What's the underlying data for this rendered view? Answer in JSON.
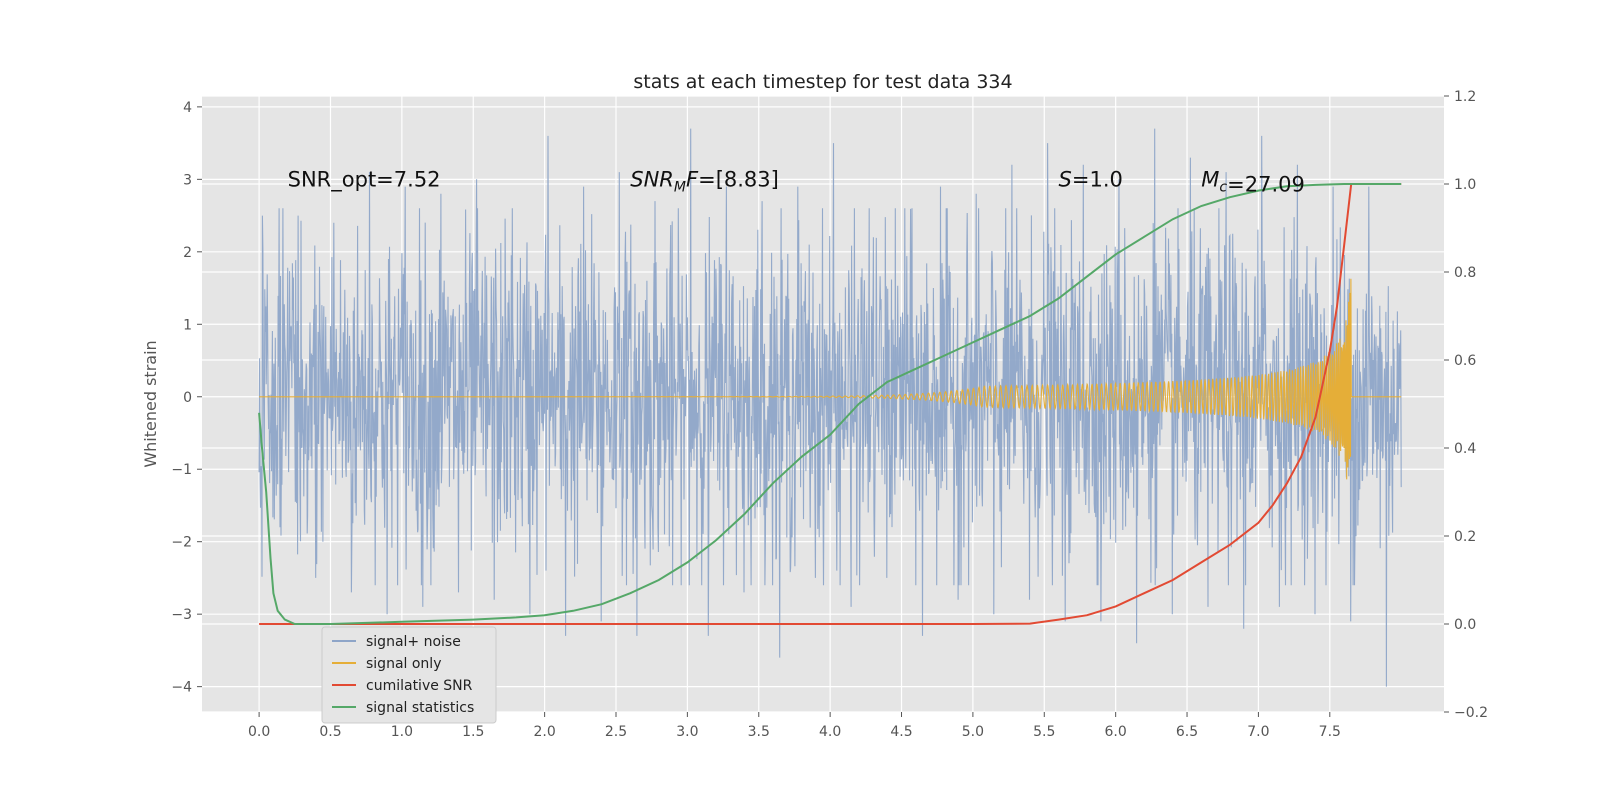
{
  "chart_data": {
    "type": "line",
    "title": "stats at each timestep for test data 334",
    "ylabel": "Whitened strain",
    "y2label": "",
    "xlim": [
      -0.4,
      8.3
    ],
    "ylim": [
      -4.35,
      4.15
    ],
    "y2lim": [
      -0.2,
      1.2
    ],
    "x_ticks": [
      0.0,
      0.5,
      1.0,
      1.5,
      2.0,
      2.5,
      3.0,
      3.5,
      4.0,
      4.5,
      5.0,
      5.5,
      6.0,
      6.5,
      7.0,
      7.5
    ],
    "x_tick_labels": [
      "0.0",
      "0.5",
      "1.0",
      "1.5",
      "2.0",
      "2.5",
      "3.0",
      "3.5",
      "4.0",
      "4.5",
      "5.0",
      "5.5",
      "6.0",
      "6.5",
      "7.0",
      "7.5"
    ],
    "y_ticks": [
      -4,
      -3,
      -2,
      -1,
      0,
      1,
      2,
      3,
      4
    ],
    "y_tick_labels": [
      "−4",
      "−3",
      "−2",
      "−1",
      "0",
      "1",
      "2",
      "3",
      "4"
    ],
    "y2_ticks": [
      -0.2,
      0.0,
      0.2,
      0.4,
      0.6,
      0.8,
      1.0,
      1.2
    ],
    "y2_tick_labels": [
      "−0.2",
      "0.0",
      "0.2",
      "0.4",
      "0.6",
      "0.8",
      "1.0",
      "1.2"
    ],
    "grid": true,
    "legend_position": "bottom-left",
    "annotations": [
      {
        "prefix": "SNR_opt=",
        "sub": "",
        "value": "7.52",
        "x": 0.2,
        "y": 3.0,
        "italic": false
      },
      {
        "prefix": "SNR",
        "sub": "M",
        "suffix": "F",
        "value": "=[8.83]",
        "x": 2.6,
        "y": 3.0,
        "italic": true
      },
      {
        "prefix": "S",
        "sub": "",
        "value": "=1.0",
        "x": 5.6,
        "y": 3.0,
        "italic": true
      },
      {
        "prefix": "M",
        "sub": "c",
        "value": "=27.09",
        "x": 6.6,
        "y": 3.0,
        "italic": true
      }
    ],
    "series": [
      {
        "name": "signal+ noise",
        "axis": "left",
        "color": "#8EA5C8",
        "kind": "noise",
        "x_range": [
          0.0,
          8.0
        ],
        "amplitude_typical": 1.3,
        "peaks_max": [
          2.5,
          2.5,
          2.4,
          3.1,
          2.9,
          2.8,
          3.0,
          2.6,
          3.6,
          2.9,
          3.1,
          2.7,
          3.7,
          2.9,
          2.7,
          2.9,
          3.5,
          2.6,
          2.6,
          2.9,
          2.8,
          3.2,
          3.5,
          3.2,
          3.0,
          3.7,
          3.3,
          3.1,
          3.6,
          3.2,
          2.9,
          2.9
        ],
        "peaks_min": [
          -1.8,
          -2.5,
          -2.7,
          -3.0,
          -2.9,
          -2.7,
          -2.8,
          -3.0,
          -3.3,
          -3.1,
          -3.3,
          -2.6,
          -3.3,
          -2.7,
          -3.6,
          -2.5,
          -2.9,
          -2.5,
          -3.3,
          -2.8,
          -3.0,
          -2.8,
          -3.1,
          -3.1,
          -3.4,
          -3.0,
          -2.9,
          -3.2,
          -2.9,
          -3.0,
          -3.1,
          -4.0
        ]
      },
      {
        "name": "signal only",
        "axis": "left",
        "color": "#E5AE38",
        "kind": "chirp",
        "x_range": [
          0.0,
          8.0
        ],
        "merger_time": 7.65,
        "peak_amplitude": 1.7
      },
      {
        "name": "cumilative SNR",
        "axis": "right",
        "color": "#E24A33",
        "kind": "line",
        "x": [
          0.0,
          1.0,
          2.0,
          3.0,
          4.0,
          5.0,
          5.4,
          5.6,
          5.8,
          5.9,
          6.0,
          6.2,
          6.4,
          6.6,
          6.8,
          7.0,
          7.1,
          7.2,
          7.3,
          7.4,
          7.5,
          7.55,
          7.6,
          7.65,
          7.7,
          8.0
        ],
        "y": [
          0.0,
          0.0,
          0.0,
          0.0,
          0.0,
          0.0,
          0.001,
          0.01,
          0.02,
          0.03,
          0.04,
          0.07,
          0.1,
          0.14,
          0.18,
          0.23,
          0.27,
          0.32,
          0.38,
          0.47,
          0.62,
          0.72,
          0.86,
          1.0,
          1.0,
          1.0
        ]
      },
      {
        "name": "signal statistics",
        "axis": "right",
        "color": "#55A868",
        "kind": "line",
        "x": [
          0.0,
          0.02,
          0.05,
          0.08,
          0.1,
          0.13,
          0.18,
          0.25,
          0.5,
          1.0,
          1.5,
          1.8,
          2.0,
          2.2,
          2.4,
          2.6,
          2.8,
          3.0,
          3.2,
          3.4,
          3.6,
          3.8,
          4.0,
          4.2,
          4.4,
          4.6,
          4.8,
          5.0,
          5.2,
          5.4,
          5.6,
          5.8,
          6.0,
          6.2,
          6.4,
          6.6,
          6.8,
          7.0,
          7.2,
          7.4,
          7.6,
          7.8,
          8.0
        ],
        "y": [
          0.48,
          0.4,
          0.3,
          0.15,
          0.07,
          0.03,
          0.01,
          0.0,
          0.0,
          0.005,
          0.01,
          0.015,
          0.02,
          0.03,
          0.045,
          0.07,
          0.1,
          0.14,
          0.19,
          0.25,
          0.32,
          0.38,
          0.43,
          0.5,
          0.55,
          0.58,
          0.61,
          0.64,
          0.67,
          0.7,
          0.74,
          0.79,
          0.84,
          0.88,
          0.92,
          0.95,
          0.97,
          0.985,
          0.995,
          0.998,
          1.0,
          1.0,
          1.0
        ]
      }
    ]
  }
}
